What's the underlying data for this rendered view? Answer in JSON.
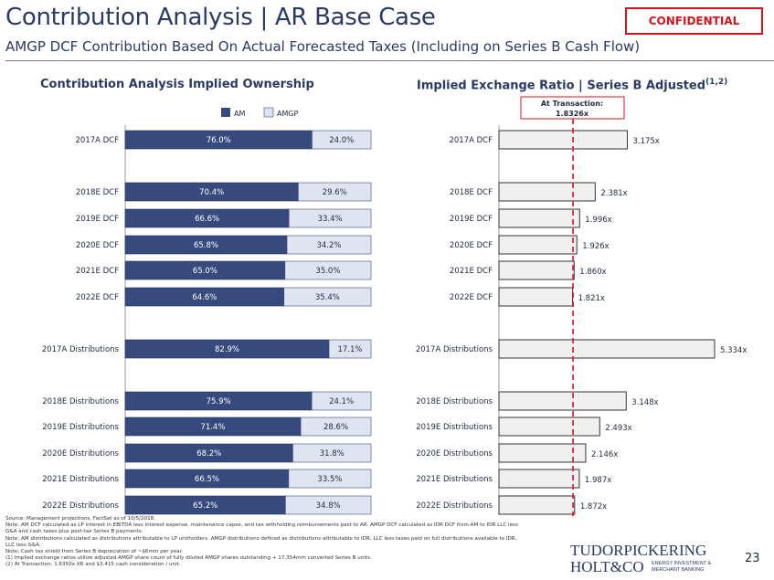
{
  "header": {
    "title": "Contribution Analysis | AR Base Case",
    "subtitle": "AMGP DCF Contribution Based On Actual Forecasted Taxes (Including on Series B Cash Flow)",
    "confidential": "CONFIDENTIAL"
  },
  "sections": {
    "left_title": "Contribution Analysis Implied Ownership",
    "right_title": "Implied Exchange Ratio | Series B Adjusted",
    "right_title_sup": "(1,2)"
  },
  "colors": {
    "am": "#364a7e",
    "amgp": "#dfe4f0",
    "exchange_bar": "#f0f0f0",
    "reference_line": "#d4151b",
    "accent": "#2a3a66"
  },
  "chart_data": [
    {
      "type": "bar",
      "orientation": "horizontal",
      "stacked": true,
      "title": "Contribution Analysis Implied Ownership",
      "categories": [
        "2017A DCF",
        "2018E DCF",
        "2019E DCF",
        "2020E DCF",
        "2021E DCF",
        "2022E DCF",
        "2017A Distributions",
        "2018E Distributions",
        "2019E Distributions",
        "2020E Distributions",
        "2021E Distributions",
        "2022E Distributions"
      ],
      "series": [
        {
          "name": "AM",
          "values": [
            76.0,
            70.4,
            66.6,
            65.8,
            65.0,
            64.6,
            82.9,
            75.9,
            71.4,
            68.2,
            66.5,
            65.2
          ],
          "labels": [
            "76.0%",
            "70.4%",
            "66.6%",
            "65.8%",
            "65.0%",
            "64.6%",
            "82.9%",
            "75.9%",
            "71.4%",
            "68.2%",
            "66.5%",
            "65.2%"
          ]
        },
        {
          "name": "AMGP",
          "values": [
            24.0,
            29.6,
            33.4,
            34.2,
            35.0,
            35.4,
            17.1,
            24.1,
            28.6,
            31.8,
            33.5,
            34.8
          ],
          "labels": [
            "24.0%",
            "29.6%",
            "33.4%",
            "34.2%",
            "35.0%",
            "35.4%",
            "17.1%",
            "24.1%",
            "28.6%",
            "31.8%",
            "33.5%",
            "34.8%"
          ]
        }
      ],
      "xlim": [
        0,
        100
      ],
      "legend": "top-center"
    },
    {
      "type": "bar",
      "orientation": "horizontal",
      "title": "Implied Exchange Ratio | Series B Adjusted",
      "categories": [
        "2017A DCF",
        "2018E DCF",
        "2019E DCF",
        "2020E DCF",
        "2021E DCF",
        "2022E DCF",
        "2017A Distributions",
        "2018E Distributions",
        "2019E Distributions",
        "2020E Distributions",
        "2021E Distributions",
        "2022E Distributions"
      ],
      "values": [
        3.175,
        2.381,
        1.996,
        1.926,
        1.86,
        1.821,
        5.334,
        3.148,
        2.493,
        2.146,
        1.987,
        1.872
      ],
      "labels": [
        "3.175x",
        "2.381x",
        "1.996x",
        "1.926x",
        "1.860x",
        "1.821x",
        "5.334x",
        "3.148x",
        "2.493x",
        "2.146x",
        "1.987x",
        "1.872x"
      ],
      "reference": {
        "value": 1.8326,
        "label_line1": "At Transaction:",
        "label_line2": "1.8326x"
      },
      "xlim": [
        0,
        5.334
      ]
    }
  ],
  "footnotes": [
    "Source: Management projections. FactSet as of 10/5/2018.",
    "Note: AM DCF calculated as LP interest in EBITDA less interest expense, maintenance capex, and tax withholding reimbursements paid to AR. AMGP DCF calculated as IDR DCF from AM to IDR LLC less",
    "G&A and cash taxes plus post-tax Series B payments.",
    "Note: AM distributions calculated as distributions attributable to LP unitholders. AMGP distributions defined as distributions attributable to IDR, LLC less taxes paid on full distributions available to IDR,",
    "LLC less G&A.",
    "Note: Cash tax shield from Series B depreciation of ~$6mm per year.",
    "(1)      Implied exchange ratios utilize adjusted AMGP share count of fully diluted AMGP shares outstanding + 17.354mm converted Series B units.",
    "(2)      At Transaction: 1.6350x XR and $3.415 cash consideration / unit."
  ],
  "logo": {
    "line1": "TUDORPICKERING",
    "line2": "HOLT&CO",
    "tagline1": "ENERGY INVESTMENT &",
    "tagline2": "MERCHANT BANKING"
  },
  "page_number": "23"
}
